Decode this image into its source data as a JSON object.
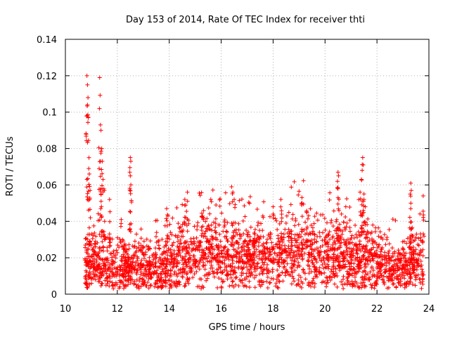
{
  "chart_data": {
    "type": "scatter",
    "title": "Day 153 of 2014, Rate Of TEC Index for receiver thti",
    "xlabel": "GPS time / hours",
    "ylabel": "ROTI / TECUs",
    "xlim": [
      10,
      24
    ],
    "ylim": [
      0,
      0.14
    ],
    "xticks": [
      10,
      12,
      14,
      16,
      18,
      20,
      22,
      24
    ],
    "xtick_labels": [
      "10",
      "12",
      "14",
      "16",
      "18",
      "20",
      "22",
      "24"
    ],
    "yticks": [
      0,
      0.02,
      0.04,
      0.06,
      0.08,
      0.1,
      0.12,
      0.14
    ],
    "ytick_labels": [
      "0",
      "0.02",
      "0.04",
      "0.06",
      "0.08",
      "0.1",
      "0.12",
      "0.14"
    ],
    "grid": true,
    "marker": "+",
    "color": "#ff0000",
    "x_range_of_data": [
      10.75,
      23.8
    ],
    "baseline": [
      [
        10.75,
        0.014
      ],
      [
        11.0,
        0.014
      ],
      [
        11.5,
        0.013
      ],
      [
        12.0,
        0.013
      ],
      [
        12.5,
        0.012
      ],
      [
        13.0,
        0.013
      ],
      [
        13.5,
        0.013
      ],
      [
        14.0,
        0.014
      ],
      [
        14.5,
        0.016
      ],
      [
        15.0,
        0.018
      ],
      [
        15.5,
        0.02
      ],
      [
        16.0,
        0.019
      ],
      [
        16.5,
        0.018
      ],
      [
        17.0,
        0.017
      ],
      [
        17.5,
        0.017
      ],
      [
        18.0,
        0.018
      ],
      [
        18.5,
        0.019
      ],
      [
        19.0,
        0.02
      ],
      [
        19.5,
        0.019
      ],
      [
        20.0,
        0.018
      ],
      [
        20.5,
        0.017
      ],
      [
        21.0,
        0.017
      ],
      [
        21.5,
        0.016
      ],
      [
        22.0,
        0.015
      ],
      [
        22.5,
        0.013
      ],
      [
        23.0,
        0.013
      ],
      [
        23.5,
        0.014
      ],
      [
        23.8,
        0.015
      ]
    ],
    "peaks": [
      {
        "x": 10.83,
        "y": 0.12
      },
      {
        "x": 10.85,
        "y": 0.115
      },
      {
        "x": 10.87,
        "y": 0.108
      },
      {
        "x": 10.85,
        "y": 0.104
      },
      {
        "x": 10.83,
        "y": 0.098
      },
      {
        "x": 10.9,
        "y": 0.069
      },
      {
        "x": 10.92,
        "y": 0.066
      },
      {
        "x": 10.95,
        "y": 0.057
      },
      {
        "x": 11.32,
        "y": 0.119
      },
      {
        "x": 11.35,
        "y": 0.093
      },
      {
        "x": 11.37,
        "y": 0.09
      },
      {
        "x": 11.4,
        "y": 0.08
      },
      {
        "x": 11.35,
        "y": 0.073
      },
      {
        "x": 11.42,
        "y": 0.073
      },
      {
        "x": 11.3,
        "y": 0.069
      },
      {
        "x": 11.45,
        "y": 0.063
      },
      {
        "x": 11.5,
        "y": 0.057
      },
      {
        "x": 11.7,
        "y": 0.052
      },
      {
        "x": 12.5,
        "y": 0.075
      },
      {
        "x": 12.52,
        "y": 0.073
      },
      {
        "x": 12.48,
        "y": 0.067
      },
      {
        "x": 12.5,
        "y": 0.065
      },
      {
        "x": 12.15,
        "y": 0.041
      },
      {
        "x": 13.9,
        "y": 0.047
      },
      {
        "x": 13.95,
        "y": 0.043
      },
      {
        "x": 14.7,
        "y": 0.056
      },
      {
        "x": 14.6,
        "y": 0.052
      },
      {
        "x": 15.6,
        "y": 0.052
      },
      {
        "x": 15.8,
        "y": 0.049
      },
      {
        "x": 16.4,
        "y": 0.059
      },
      {
        "x": 16.45,
        "y": 0.056
      },
      {
        "x": 16.5,
        "y": 0.052
      },
      {
        "x": 18.0,
        "y": 0.048
      },
      {
        "x": 18.3,
        "y": 0.052
      },
      {
        "x": 19.1,
        "y": 0.049
      },
      {
        "x": 20.5,
        "y": 0.067
      },
      {
        "x": 20.52,
        "y": 0.065
      },
      {
        "x": 20.48,
        "y": 0.062
      },
      {
        "x": 20.5,
        "y": 0.053
      },
      {
        "x": 20.8,
        "y": 0.048
      },
      {
        "x": 21.45,
        "y": 0.075
      },
      {
        "x": 21.47,
        "y": 0.071
      },
      {
        "x": 21.43,
        "y": 0.068
      },
      {
        "x": 21.4,
        "y": 0.063
      },
      {
        "x": 21.35,
        "y": 0.056
      },
      {
        "x": 21.5,
        "y": 0.052
      },
      {
        "x": 21.55,
        "y": 0.048
      },
      {
        "x": 23.3,
        "y": 0.061
      },
      {
        "x": 23.32,
        "y": 0.057
      },
      {
        "x": 23.28,
        "y": 0.055
      },
      {
        "x": 23.3,
        "y": 0.047
      },
      {
        "x": 23.78,
        "y": 0.054
      }
    ]
  }
}
